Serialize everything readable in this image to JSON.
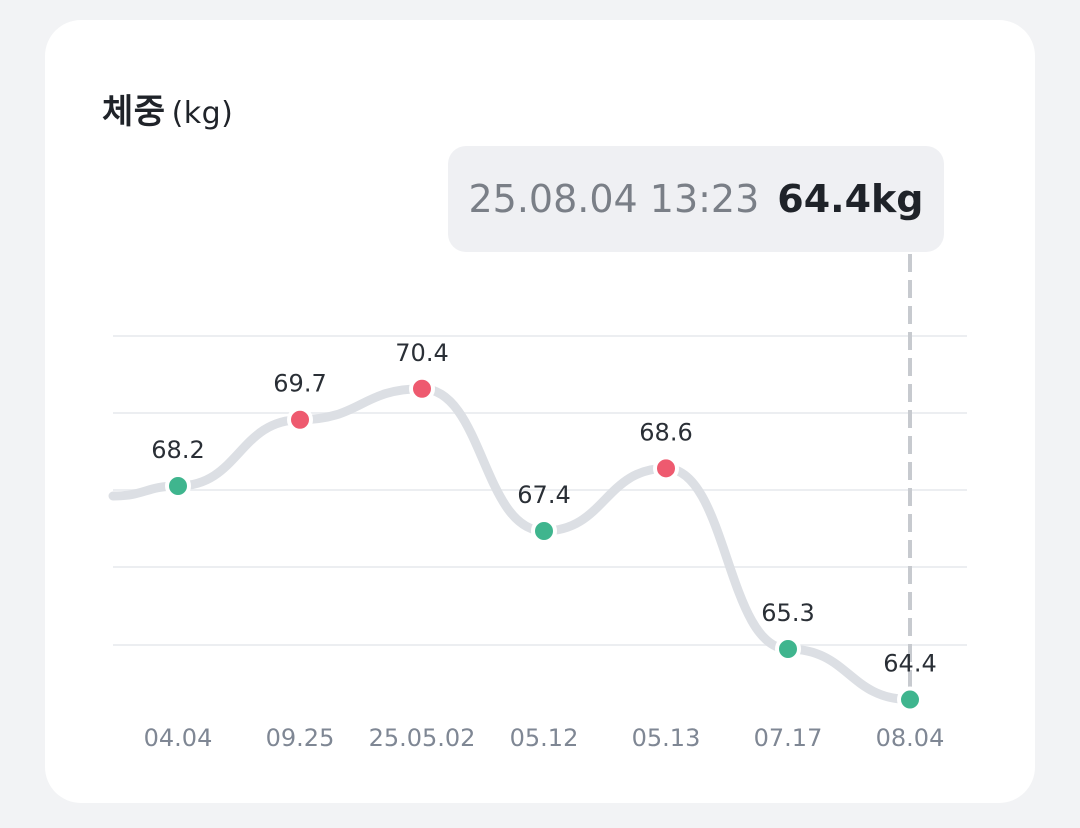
{
  "title": "체중",
  "unit": "(kg)",
  "tooltip": {
    "datetime": "25.08.04 13:23",
    "value": "64.4kg"
  },
  "colors": {
    "up": "#ee5a6f",
    "down": "#3fb58e",
    "line": "#dcdfe4",
    "grid": "#eceef1",
    "guide": "#c7cacf"
  },
  "chart_data": {
    "type": "line",
    "categories": [
      "04.04",
      "09.25",
      "25.05.02",
      "05.12",
      "05.13",
      "07.17",
      "08.04"
    ],
    "values": [
      68.2,
      69.7,
      70.4,
      67.4,
      68.6,
      65.3,
      64.4
    ],
    "labels": [
      "68.2",
      "69.7",
      "70.4",
      "67.4",
      "68.6",
      "65.3",
      "64.4"
    ],
    "point_colors": [
      "down",
      "up",
      "up",
      "down",
      "up",
      "down",
      "down"
    ],
    "selected_index": 6,
    "grid": true
  }
}
